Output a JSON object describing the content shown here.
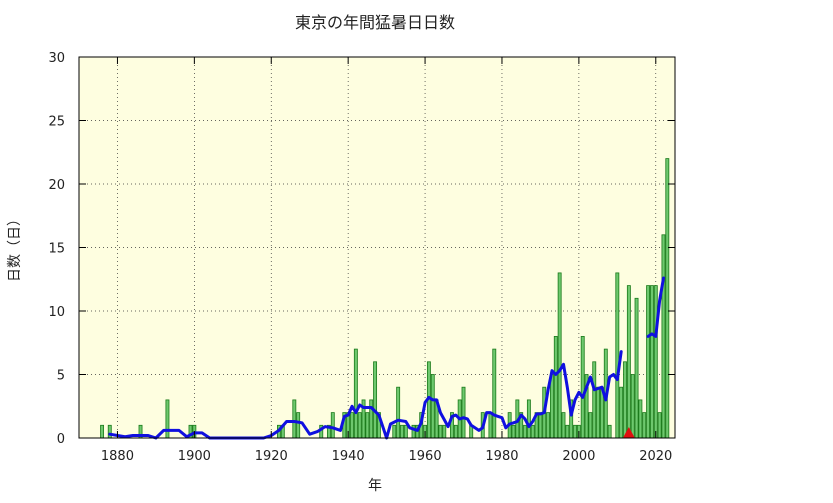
{
  "chart_data": {
    "type": "bar",
    "title": "東京の年間猛暑日日数",
    "xlabel": "年",
    "ylabel": "日数（日）",
    "xlim": [
      1870,
      2025
    ],
    "ylim": [
      0,
      30
    ],
    "x_ticks": [
      1880,
      1900,
      1920,
      1940,
      1960,
      1980,
      2000,
      2020
    ],
    "y_ticks": [
      0,
      5,
      10,
      15,
      20,
      25,
      30
    ],
    "grid": true,
    "background_color": "#fefee0",
    "bar_fill": "#6ec86e",
    "bar_stroke": "#1a7a1a",
    "line_color": "#1010e0",
    "marker_color": "#e01010",
    "bars": [
      {
        "x": 1876,
        "y": 1
      },
      {
        "x": 1878,
        "y": 1
      },
      {
        "x": 1886,
        "y": 1
      },
      {
        "x": 1893,
        "y": 3
      },
      {
        "x": 1899,
        "y": 1
      },
      {
        "x": 1900,
        "y": 1
      },
      {
        "x": 1922,
        "y": 1
      },
      {
        "x": 1923,
        "y": 1
      },
      {
        "x": 1926,
        "y": 3
      },
      {
        "x": 1927,
        "y": 2
      },
      {
        "x": 1933,
        "y": 1
      },
      {
        "x": 1935,
        "y": 1
      },
      {
        "x": 1936,
        "y": 2
      },
      {
        "x": 1939,
        "y": 2
      },
      {
        "x": 1940,
        "y": 2
      },
      {
        "x": 1941,
        "y": 2
      },
      {
        "x": 1942,
        "y": 7
      },
      {
        "x": 1943,
        "y": 2
      },
      {
        "x": 1944,
        "y": 3
      },
      {
        "x": 1945,
        "y": 2
      },
      {
        "x": 1946,
        "y": 3
      },
      {
        "x": 1947,
        "y": 6
      },
      {
        "x": 1948,
        "y": 2
      },
      {
        "x": 1952,
        "y": 1
      },
      {
        "x": 1953,
        "y": 4
      },
      {
        "x": 1954,
        "y": 1
      },
      {
        "x": 1955,
        "y": 1
      },
      {
        "x": 1957,
        "y": 1
      },
      {
        "x": 1958,
        "y": 1
      },
      {
        "x": 1959,
        "y": 2
      },
      {
        "x": 1960,
        "y": 1
      },
      {
        "x": 1961,
        "y": 6
      },
      {
        "x": 1962,
        "y": 5
      },
      {
        "x": 1963,
        "y": 3
      },
      {
        "x": 1964,
        "y": 1
      },
      {
        "x": 1965,
        "y": 1
      },
      {
        "x": 1967,
        "y": 2
      },
      {
        "x": 1968,
        "y": 1
      },
      {
        "x": 1969,
        "y": 3
      },
      {
        "x": 1970,
        "y": 4
      },
      {
        "x": 1972,
        "y": 1
      },
      {
        "x": 1975,
        "y": 2
      },
      {
        "x": 1977,
        "y": 2
      },
      {
        "x": 1978,
        "y": 7
      },
      {
        "x": 1982,
        "y": 2
      },
      {
        "x": 1983,
        "y": 1
      },
      {
        "x": 1984,
        "y": 3
      },
      {
        "x": 1985,
        "y": 2
      },
      {
        "x": 1986,
        "y": 1
      },
      {
        "x": 1987,
        "y": 3
      },
      {
        "x": 1988,
        "y": 1
      },
      {
        "x": 1989,
        "y": 2
      },
      {
        "x": 1990,
        "y": 2
      },
      {
        "x": 1991,
        "y": 4
      },
      {
        "x": 1992,
        "y": 2
      },
      {
        "x": 1993,
        "y": 5
      },
      {
        "x": 1994,
        "y": 8
      },
      {
        "x": 1995,
        "y": 13
      },
      {
        "x": 1996,
        "y": 2
      },
      {
        "x": 1997,
        "y": 1
      },
      {
        "x": 1998,
        "y": 3
      },
      {
        "x": 1999,
        "y": 1
      },
      {
        "x": 2000,
        "y": 1
      },
      {
        "x": 2001,
        "y": 8
      },
      {
        "x": 2002,
        "y": 5
      },
      {
        "x": 2003,
        "y": 2
      },
      {
        "x": 2004,
        "y": 6
      },
      {
        "x": 2005,
        "y": 4
      },
      {
        "x": 2006,
        "y": 4
      },
      {
        "x": 2007,
        "y": 7
      },
      {
        "x": 2008,
        "y": 1
      },
      {
        "x": 2010,
        "y": 13
      },
      {
        "x": 2011,
        "y": 4
      },
      {
        "x": 2012,
        "y": 6
      },
      {
        "x": 2013,
        "y": 12
      },
      {
        "x": 2014,
        "y": 5
      },
      {
        "x": 2015,
        "y": 11
      },
      {
        "x": 2016,
        "y": 3
      },
      {
        "x": 2017,
        "y": 2
      },
      {
        "x": 2018,
        "y": 12
      },
      {
        "x": 2019,
        "y": 12
      },
      {
        "x": 2020,
        "y": 12
      },
      {
        "x": 2021,
        "y": 2
      },
      {
        "x": 2022,
        "y": 16
      },
      {
        "x": 2023,
        "y": 22
      }
    ],
    "moving_average": [
      {
        "x": 1878,
        "y": 0.3
      },
      {
        "x": 1880,
        "y": 0.2
      },
      {
        "x": 1882,
        "y": 0.1
      },
      {
        "x": 1884,
        "y": 0.2
      },
      {
        "x": 1886,
        "y": 0.2
      },
      {
        "x": 1888,
        "y": 0.2
      },
      {
        "x": 1890,
        "y": 0.0
      },
      {
        "x": 1892,
        "y": 0.6
      },
      {
        "x": 1894,
        "y": 0.6
      },
      {
        "x": 1896,
        "y": 0.6
      },
      {
        "x": 1898,
        "y": 0.1
      },
      {
        "x": 1900,
        "y": 0.4
      },
      {
        "x": 1902,
        "y": 0.4
      },
      {
        "x": 1904,
        "y": 0.0
      },
      {
        "x": 1918,
        "y": 0.0
      },
      {
        "x": 1920,
        "y": 0.2
      },
      {
        "x": 1922,
        "y": 0.6
      },
      {
        "x": 1924,
        "y": 1.3
      },
      {
        "x": 1926,
        "y": 1.3
      },
      {
        "x": 1928,
        "y": 1.2
      },
      {
        "x": 1930,
        "y": 0.3
      },
      {
        "x": 1932,
        "y": 0.5
      },
      {
        "x": 1934,
        "y": 0.9
      },
      {
        "x": 1936,
        "y": 0.8
      },
      {
        "x": 1938,
        "y": 0.6
      },
      {
        "x": 1939,
        "y": 1.7
      },
      {
        "x": 1940,
        "y": 1.8
      },
      {
        "x": 1941,
        "y": 2.5
      },
      {
        "x": 1942,
        "y": 2.0
      },
      {
        "x": 1943,
        "y": 2.6
      },
      {
        "x": 1944,
        "y": 2.4
      },
      {
        "x": 1946,
        "y": 2.4
      },
      {
        "x": 1948,
        "y": 1.8
      },
      {
        "x": 1950,
        "y": 0.0
      },
      {
        "x": 1951,
        "y": 1.1
      },
      {
        "x": 1953,
        "y": 1.4
      },
      {
        "x": 1955,
        "y": 1.3
      },
      {
        "x": 1956,
        "y": 0.8
      },
      {
        "x": 1957,
        "y": 0.7
      },
      {
        "x": 1958,
        "y": 0.6
      },
      {
        "x": 1959,
        "y": 1.2
      },
      {
        "x": 1960,
        "y": 2.8
      },
      {
        "x": 1961,
        "y": 3.2
      },
      {
        "x": 1962,
        "y": 3.0
      },
      {
        "x": 1963,
        "y": 3.0
      },
      {
        "x": 1964,
        "y": 2.0
      },
      {
        "x": 1966,
        "y": 0.9
      },
      {
        "x": 1967,
        "y": 1.7
      },
      {
        "x": 1968,
        "y": 1.8
      },
      {
        "x": 1969,
        "y": 1.5
      },
      {
        "x": 1970,
        "y": 1.6
      },
      {
        "x": 1971,
        "y": 1.5
      },
      {
        "x": 1972,
        "y": 1.0
      },
      {
        "x": 1974,
        "y": 0.6
      },
      {
        "x": 1975,
        "y": 0.8
      },
      {
        "x": 1976,
        "y": 2.0
      },
      {
        "x": 1977,
        "y": 2.0
      },
      {
        "x": 1978,
        "y": 1.8
      },
      {
        "x": 1979,
        "y": 1.7
      },
      {
        "x": 1980,
        "y": 1.6
      },
      {
        "x": 1981,
        "y": 0.8
      },
      {
        "x": 1982,
        "y": 1.1
      },
      {
        "x": 1983,
        "y": 1.2
      },
      {
        "x": 1984,
        "y": 1.3
      },
      {
        "x": 1985,
        "y": 1.8
      },
      {
        "x": 1986,
        "y": 1.5
      },
      {
        "x": 1987,
        "y": 0.9
      },
      {
        "x": 1988,
        "y": 1.3
      },
      {
        "x": 1989,
        "y": 1.9
      },
      {
        "x": 1990,
        "y": 1.9
      },
      {
        "x": 1991,
        "y": 2.0
      },
      {
        "x": 1992,
        "y": 3.8
      },
      {
        "x": 1993,
        "y": 5.3
      },
      {
        "x": 1994,
        "y": 5.0
      },
      {
        "x": 1995,
        "y": 5.3
      },
      {
        "x": 1996,
        "y": 5.8
      },
      {
        "x": 1997,
        "y": 4.0
      },
      {
        "x": 1998,
        "y": 1.8
      },
      {
        "x": 1999,
        "y": 3.0
      },
      {
        "x": 2000,
        "y": 3.6
      },
      {
        "x": 2001,
        "y": 3.2
      },
      {
        "x": 2002,
        "y": 4.0
      },
      {
        "x": 2003,
        "y": 4.8
      },
      {
        "x": 2004,
        "y": 3.8
      },
      {
        "x": 2005,
        "y": 3.9
      },
      {
        "x": 2006,
        "y": 4.0
      },
      {
        "x": 2007,
        "y": 3.0
      },
      {
        "x": 2008,
        "y": 4.8
      },
      {
        "x": 2009,
        "y": 5.0
      },
      {
        "x": 2010,
        "y": 4.6
      },
      {
        "x": 2011,
        "y": 6.8
      },
      {
        "x": 2018,
        "y": 8.0
      },
      {
        "x": 2019,
        "y": 8.2
      },
      {
        "x": 2020,
        "y": 8.0
      },
      {
        "x": 2021,
        "y": 10.8
      },
      {
        "x": 2022,
        "y": 12.6
      }
    ],
    "markers": [
      {
        "x": 2013,
        "y": 0,
        "shape": "triangle"
      }
    ]
  }
}
